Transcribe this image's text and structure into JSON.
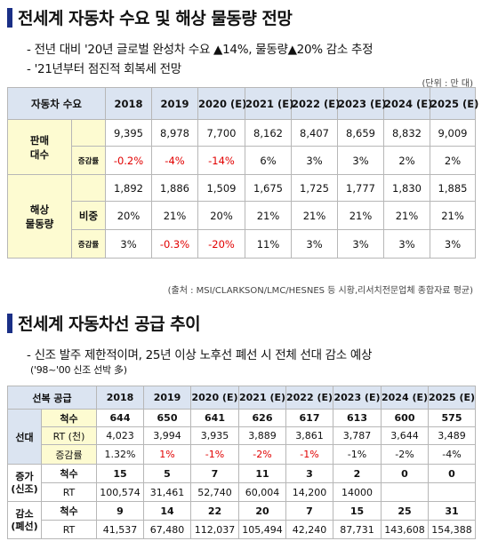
{
  "section1": {
    "title": "전세계 자동차 수요 및 해상 물동량 전망",
    "bullets": [
      "- 전년 대비 '20년 글로벌 완성차 수요 ▲14%, 물동량▲20% 감소 추정",
      "- '21년부터 점진적 회복세 전망"
    ],
    "unit": "(단위 : 만 대)",
    "source": "(출처 : MSI/CLARKSON/LMC/HESNES 등 시황,리서치전문업체 종합자료 평균)",
    "header_label": "자동차 수요",
    "years": [
      "2018",
      "2019",
      "2020 (E)",
      "2021 (E)",
      "2022 (E)",
      "2023 (E)",
      "2024 (E)",
      "2025 (E)"
    ],
    "sales": {
      "label": "판매\n대수",
      "values": [
        "9,395",
        "8,978",
        "7,700",
        "8,162",
        "8,407",
        "8,659",
        "8,832",
        "9,009"
      ],
      "change_label": "증감률",
      "change": [
        "-0.2%",
        "-4%",
        "-14%",
        "6%",
        "3%",
        "3%",
        "2%",
        "2%"
      ]
    },
    "shipping": {
      "label": "해상\n물동량",
      "values": [
        "1,892",
        "1,886",
        "1,509",
        "1,675",
        "1,725",
        "1,777",
        "1,830",
        "1,885"
      ],
      "ratio_label": "비중",
      "ratio": [
        "20%",
        "21%",
        "20%",
        "21%",
        "21%",
        "21%",
        "21%",
        "21%"
      ],
      "change_label": "증감률",
      "change": [
        "3%",
        "-0.3%",
        "-20%",
        "11%",
        "3%",
        "3%",
        "3%",
        "3%"
      ]
    }
  },
  "section2": {
    "title": "전세계 자동차선 공급 추이",
    "bullet": "- 신조 발주 제한적이며, 25년 이상 노후선 폐선 시 전체 선대 감소 예상",
    "subnote": "('98~'00 신조 선박 多)",
    "header_label": "선복 공급",
    "years": [
      "2018",
      "2019",
      "2020 (E)",
      "2021 (E)",
      "2022 (E)",
      "2023 (E)",
      "2024 (E)",
      "2025 (E)"
    ],
    "fleet": {
      "label": "선대",
      "count_label": "척수",
      "count": [
        "644",
        "650",
        "641",
        "626",
        "617",
        "613",
        "600",
        "575"
      ],
      "rt_label": "RT (천)",
      "rt": [
        "4,023",
        "3,994",
        "3,935",
        "3,889",
        "3,861",
        "3,787",
        "3,644",
        "3,489"
      ],
      "change_label": "증감률",
      "change": [
        "1.32%",
        "1%",
        "-1%",
        "-2%",
        "-1%",
        "-1%",
        "-2%",
        "-4%"
      ]
    },
    "newbuild": {
      "label": "증가\n(신조)",
      "count_label": "척수",
      "count": [
        "15",
        "5",
        "7",
        "11",
        "3",
        "2",
        "0",
        "0"
      ],
      "rt_label": "RT",
      "rt": [
        "100,574",
        "31,461",
        "52,740",
        "60,004",
        "14,200",
        "14000",
        "",
        ""
      ]
    },
    "scrap": {
      "label": "감소\n(폐선)",
      "count_label": "척수",
      "count": [
        "9",
        "14",
        "22",
        "20",
        "7",
        "15",
        "25",
        "31"
      ],
      "rt_label": "RT",
      "rt": [
        "41,537",
        "67,480",
        "112,037",
        "105,494",
        "42,240",
        "87,731",
        "143,608",
        "154,388"
      ]
    }
  }
}
